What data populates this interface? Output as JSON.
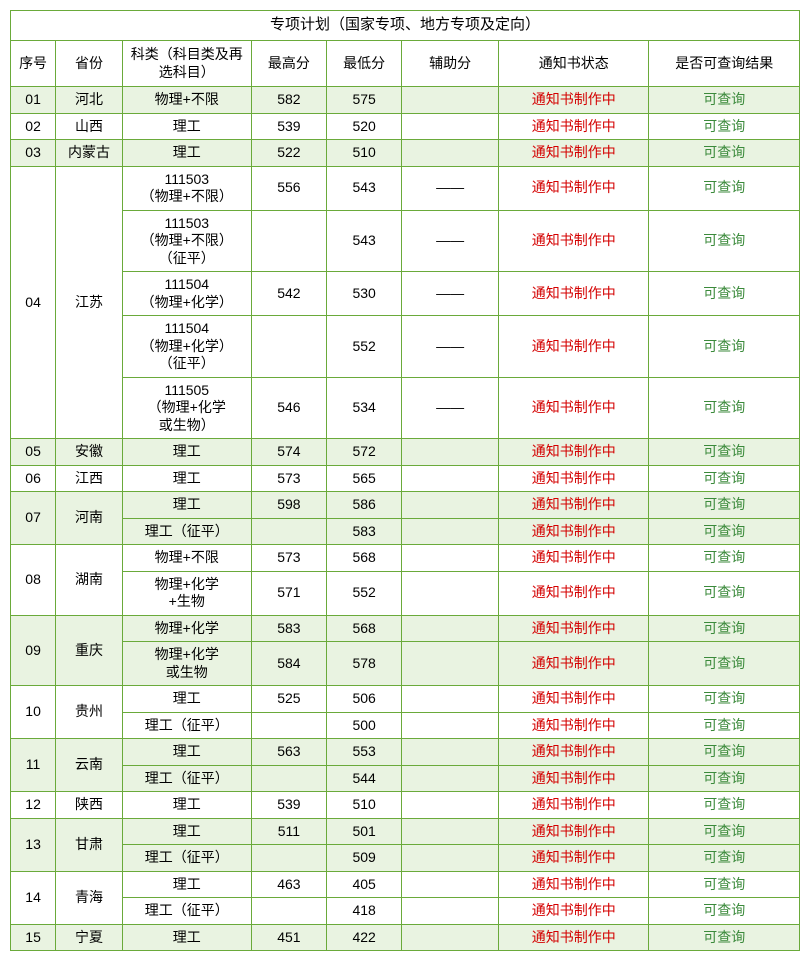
{
  "title": "专项计划（国家专项、地方专项及定向）",
  "headers": {
    "seq": "序号",
    "province": "省份",
    "category": "科类（科目类及再选科目）",
    "max": "最高分",
    "min": "最低分",
    "aux": "辅助分",
    "status": "通知书状态",
    "query": "是否可查询结果"
  },
  "colors": {
    "border": "#6aaa3a",
    "alt_bg": "#e9f3e1",
    "status_text": "#d40000",
    "query_text": "#3b8a3b"
  },
  "status_label": "通知书制作中",
  "query_label": "可查询",
  "rows": [
    {
      "seq": "01",
      "province": "河北",
      "alt": true,
      "subrows": [
        {
          "category": "物理+不限",
          "max": "582",
          "min": "575",
          "aux": ""
        }
      ]
    },
    {
      "seq": "02",
      "province": "山西",
      "alt": false,
      "subrows": [
        {
          "category": "理工",
          "max": "539",
          "min": "520",
          "aux": ""
        }
      ]
    },
    {
      "seq": "03",
      "province": "内蒙古",
      "alt": true,
      "subrows": [
        {
          "category": "理工",
          "max": "522",
          "min": "510",
          "aux": ""
        }
      ]
    },
    {
      "seq": "04",
      "province": "江苏",
      "alt": false,
      "subrows": [
        {
          "category": "111503\n（物理+不限）",
          "max": "556",
          "min": "543",
          "aux": "——"
        },
        {
          "category": "111503\n（物理+不限）\n（征平）",
          "max": "",
          "min": "543",
          "aux": "——"
        },
        {
          "category": "111504\n（物理+化学）",
          "max": "542",
          "min": "530",
          "aux": "——"
        },
        {
          "category": "111504\n（物理+化学）\n（征平）",
          "max": "",
          "min": "552",
          "aux": "——"
        },
        {
          "category": "111505\n（物理+化学\n或生物）",
          "max": "546",
          "min": "534",
          "aux": "——"
        }
      ]
    },
    {
      "seq": "05",
      "province": "安徽",
      "alt": true,
      "subrows": [
        {
          "category": "理工",
          "max": "574",
          "min": "572",
          "aux": ""
        }
      ]
    },
    {
      "seq": "06",
      "province": "江西",
      "alt": false,
      "subrows": [
        {
          "category": "理工",
          "max": "573",
          "min": "565",
          "aux": ""
        }
      ]
    },
    {
      "seq": "07",
      "province": "河南",
      "alt": true,
      "subrows": [
        {
          "category": "理工",
          "max": "598",
          "min": "586",
          "aux": ""
        },
        {
          "category": "理工（征平）",
          "max": "",
          "min": "583",
          "aux": ""
        }
      ]
    },
    {
      "seq": "08",
      "province": "湖南",
      "alt": false,
      "subrows": [
        {
          "category": "物理+不限",
          "max": "573",
          "min": "568",
          "aux": ""
        },
        {
          "category": "物理+化学\n+生物",
          "max": "571",
          "min": "552",
          "aux": ""
        }
      ]
    },
    {
      "seq": "09",
      "province": "重庆",
      "alt": true,
      "subrows": [
        {
          "category": "物理+化学",
          "max": "583",
          "min": "568",
          "aux": ""
        },
        {
          "category": "物理+化学\n或生物",
          "max": "584",
          "min": "578",
          "aux": ""
        }
      ]
    },
    {
      "seq": "10",
      "province": "贵州",
      "alt": false,
      "subrows": [
        {
          "category": "理工",
          "max": "525",
          "min": "506",
          "aux": ""
        },
        {
          "category": "理工（征平）",
          "max": "",
          "min": "500",
          "aux": ""
        }
      ]
    },
    {
      "seq": "11",
      "province": "云南",
      "alt": true,
      "subrows": [
        {
          "category": "理工",
          "max": "563",
          "min": "553",
          "aux": ""
        },
        {
          "category": "理工（征平）",
          "max": "",
          "min": "544",
          "aux": ""
        }
      ]
    },
    {
      "seq": "12",
      "province": "陕西",
      "alt": false,
      "subrows": [
        {
          "category": "理工",
          "max": "539",
          "min": "510",
          "aux": ""
        }
      ]
    },
    {
      "seq": "13",
      "province": "甘肃",
      "alt": true,
      "subrows": [
        {
          "category": "理工",
          "max": "511",
          "min": "501",
          "aux": ""
        },
        {
          "category": "理工（征平）",
          "max": "",
          "min": "509",
          "aux": ""
        }
      ]
    },
    {
      "seq": "14",
      "province": "青海",
      "alt": false,
      "subrows": [
        {
          "category": "理工",
          "max": "463",
          "min": "405",
          "aux": ""
        },
        {
          "category": "理工（征平）",
          "max": "",
          "min": "418",
          "aux": ""
        }
      ]
    },
    {
      "seq": "15",
      "province": "宁夏",
      "alt": true,
      "subrows": [
        {
          "category": "理工",
          "max": "451",
          "min": "422",
          "aux": ""
        }
      ]
    }
  ]
}
